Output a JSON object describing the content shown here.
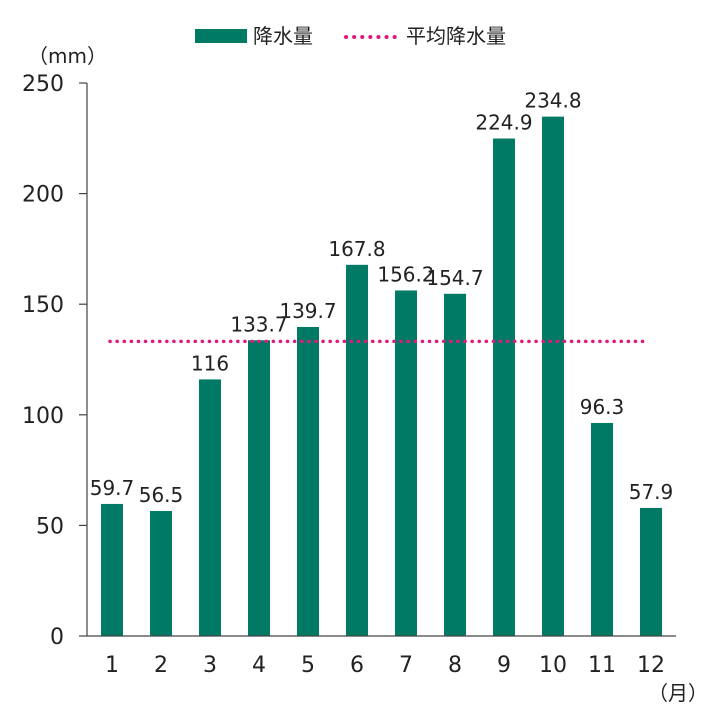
{
  "chart_data": {
    "type": "bar",
    "categories": [
      "1",
      "2",
      "3",
      "4",
      "5",
      "6",
      "7",
      "8",
      "9",
      "10",
      "11",
      "12"
    ],
    "series": [
      {
        "name": "降水量",
        "values": [
          59.7,
          56.5,
          116,
          133.7,
          139.7,
          167.8,
          156.2,
          154.7,
          224.9,
          234.8,
          96.3,
          57.9
        ],
        "labels": [
          "59.7",
          "56.5",
          "116",
          "133.7",
          "139.7",
          "167.8",
          "156.2",
          "154.7",
          "224.9",
          "234.8",
          "96.3",
          "57.9"
        ],
        "color": "#007a64"
      }
    ],
    "reference_line": {
      "name": "平均降水量",
      "value": 133.2,
      "style": "dotted",
      "color": "#e0197e"
    },
    "ylabel": "（mm）",
    "xlabel": "（月）",
    "ylim": [
      0,
      250
    ],
    "yticks": [
      "0",
      "50",
      "100",
      "150",
      "200",
      "250"
    ],
    "grid": false,
    "legend": "top-center"
  }
}
